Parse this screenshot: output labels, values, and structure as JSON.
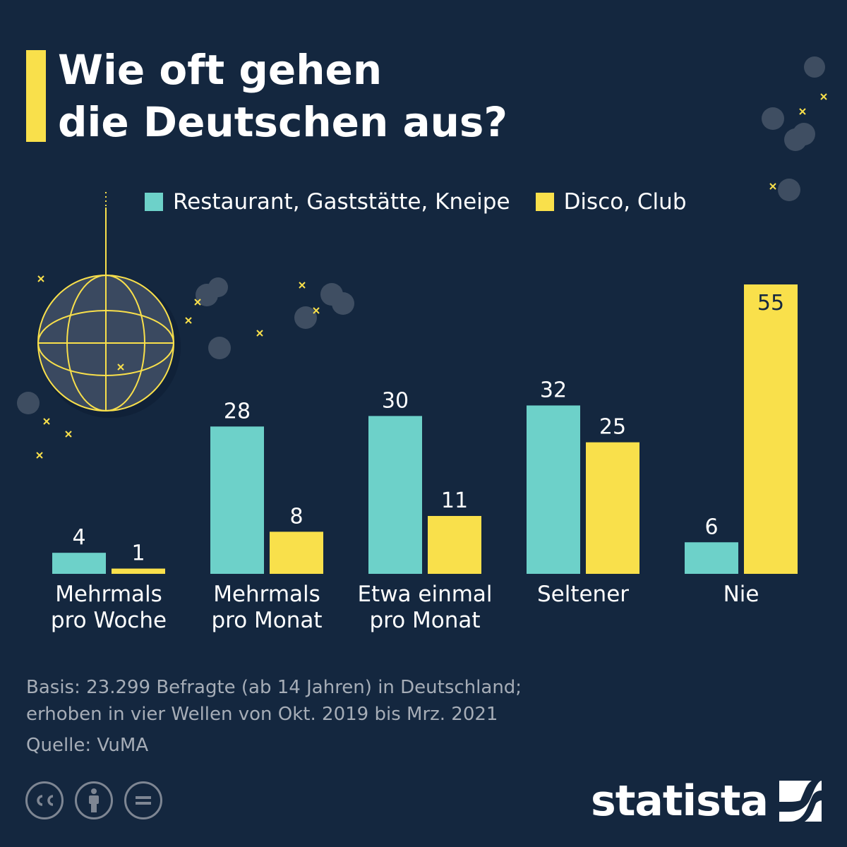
{
  "title": {
    "line1": "Wie oft gehen",
    "line2": "die Deutschen aus?"
  },
  "colors": {
    "background": "#14273f",
    "accent": "#f9e04b",
    "restaurant": "#6dd1c9",
    "disco": "#f9e04b"
  },
  "legend": [
    {
      "label": "Restaurant, Gaststätte, Kneipe",
      "color": "#6dd1c9"
    },
    {
      "label": "Disco, Club",
      "color": "#f9e04b"
    }
  ],
  "chart_data": {
    "type": "bar",
    "categories": [
      [
        "Mehrmals",
        "pro Woche"
      ],
      [
        "Mehrmals",
        "pro Monat"
      ],
      [
        "Etwa einmal",
        "pro Monat"
      ],
      [
        "Seltener"
      ],
      [
        "Nie"
      ]
    ],
    "series": [
      {
        "name": "Restaurant, Gaststätte, Kneipe",
        "values": [
          4,
          28,
          30,
          32,
          6
        ],
        "color": "#6dd1c9"
      },
      {
        "name": "Disco, Club",
        "values": [
          1,
          8,
          11,
          25,
          55
        ],
        "color": "#f9e04b"
      }
    ],
    "ylim": [
      0,
      55
    ],
    "grid": false,
    "legend_position": "top"
  },
  "footer": {
    "basis_line1": "Basis: 23.299 Befragte (ab 14 Jahren) in Deutschland;",
    "basis_line2": "erhoben in vier Wellen von Okt. 2019 bis Mrz. 2021",
    "source": "Quelle: VuMA"
  },
  "license_icons": [
    "cc-icon",
    "attribution-icon",
    "no-derivatives-icon"
  ],
  "brand": {
    "name": "statista",
    "icon": "statista-logo-icon"
  }
}
